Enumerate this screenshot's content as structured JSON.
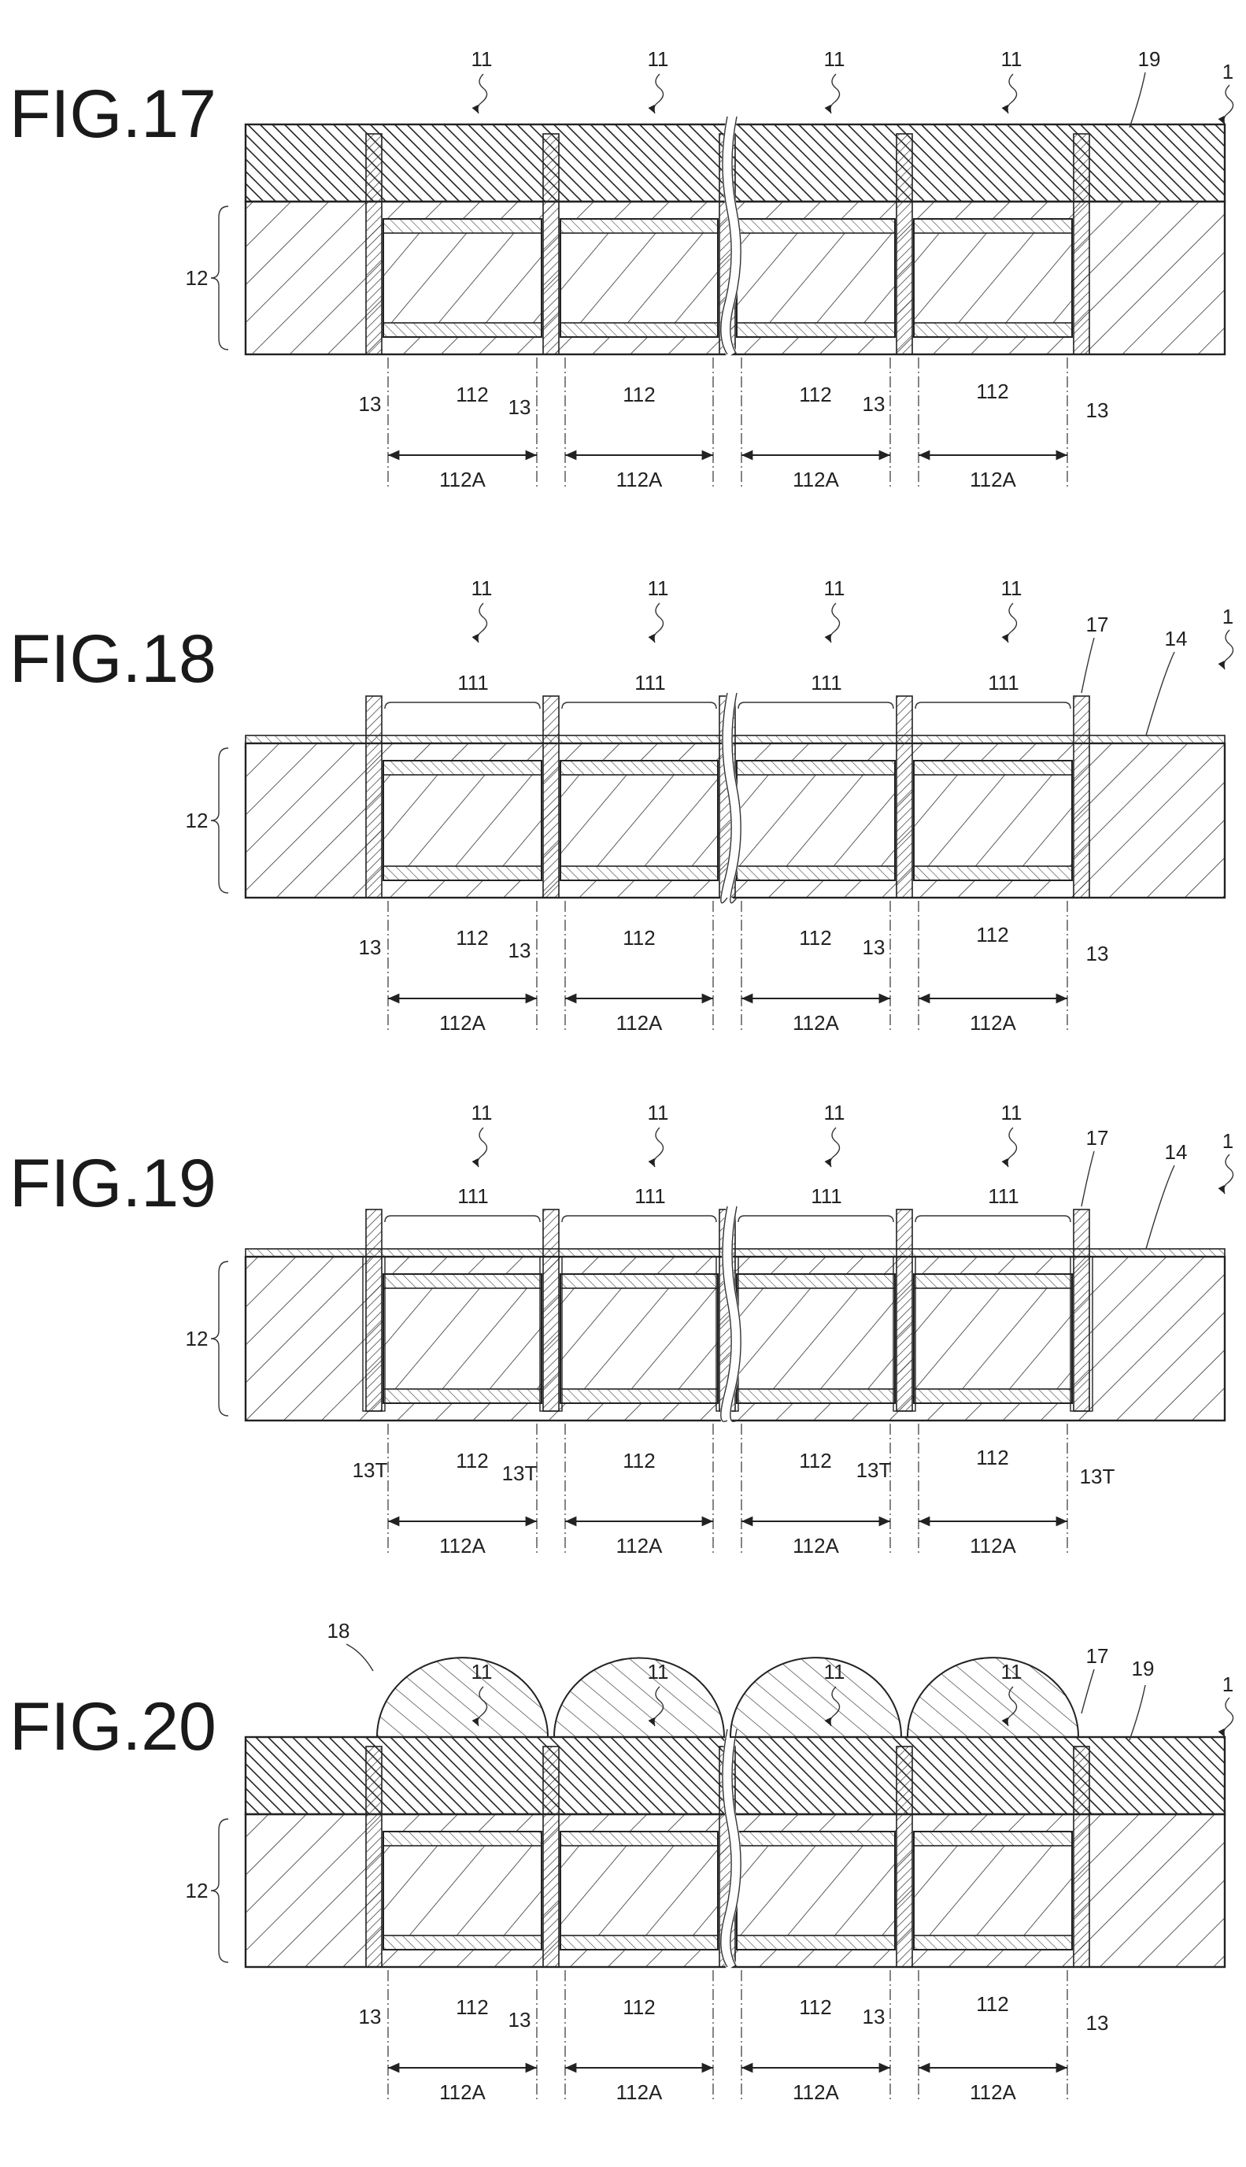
{
  "figures": [
    {
      "id": "17",
      "title": "FIG.17",
      "top_labels": [
        "11",
        "11",
        "11",
        "11"
      ],
      "corner_label": "1",
      "side_label": "12",
      "layer_label": "19",
      "bottom_row": [
        "13",
        "112",
        "13",
        "112",
        "112",
        "13",
        "112",
        "13"
      ],
      "dims": [
        "112A",
        "112A",
        "112A",
        "112A"
      ]
    },
    {
      "id": "18",
      "title": "FIG.18",
      "top_labels": [
        "11",
        "11",
        "11",
        "11"
      ],
      "mid_labels": [
        "111",
        "111",
        "111",
        "111"
      ],
      "corner_label": "1",
      "side_label": "12",
      "label_17": "17",
      "layer_label": "14",
      "bottom_row": [
        "13",
        "112",
        "13",
        "112",
        "112",
        "13",
        "112",
        "13"
      ],
      "dims": [
        "112A",
        "112A",
        "112A",
        "112A"
      ]
    },
    {
      "id": "19",
      "title": "FIG.19",
      "top_labels": [
        "11",
        "11",
        "11",
        "11"
      ],
      "mid_labels": [
        "111",
        "111",
        "111",
        "111"
      ],
      "corner_label": "1",
      "side_label": "12",
      "label_17": "17",
      "layer_label": "14",
      "bottom_row": [
        "13T",
        "112",
        "13T",
        "112",
        "112",
        "13T",
        "112",
        "13T"
      ],
      "dims": [
        "112A",
        "112A",
        "112A",
        "112A"
      ]
    },
    {
      "id": "20",
      "title": "FIG.20",
      "top_labels": [
        "11",
        "11",
        "11",
        "11"
      ],
      "corner_label": "1",
      "side_label": "12",
      "label_18": "18",
      "label_17": "17",
      "layer_label": "19",
      "bottom_row": [
        "13",
        "112",
        "13",
        "112",
        "112",
        "13",
        "112",
        "13"
      ],
      "dims": [
        "112A",
        "112A",
        "112A",
        "112A"
      ]
    }
  ]
}
